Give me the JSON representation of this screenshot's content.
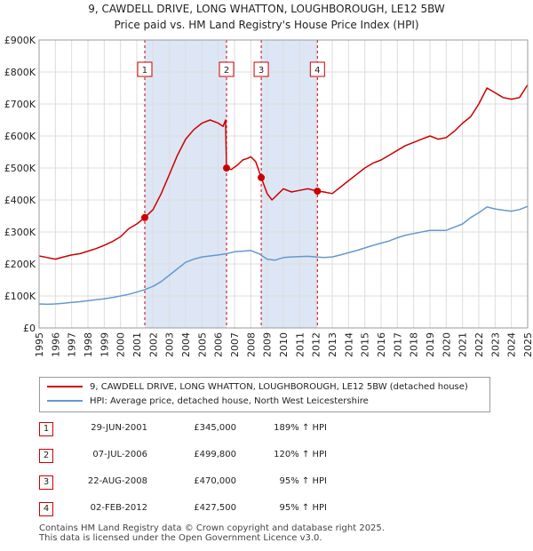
{
  "title_line1": "9, CAWDELL DRIVE, LONG WHATTON, LOUGHBOROUGH, LE12 5BW",
  "title_line2": "Price paid vs. HM Land Registry's House Price Index (HPI)",
  "colors": {
    "property": "#cc0000",
    "hpi": "#6699cc",
    "shade": "#dde6f5",
    "grid": "#dddddd"
  },
  "chart_data": {
    "type": "line",
    "xlim": [
      1995,
      2025
    ],
    "ylim": [
      0,
      900000
    ],
    "y_ticks": [
      {
        "value": 0,
        "label": "£0"
      },
      {
        "value": 100000,
        "label": "£100K"
      },
      {
        "value": 200000,
        "label": "£200K"
      },
      {
        "value": 300000,
        "label": "£300K"
      },
      {
        "value": 400000,
        "label": "£400K"
      },
      {
        "value": 500000,
        "label": "£500K"
      },
      {
        "value": 600000,
        "label": "£600K"
      },
      {
        "value": 700000,
        "label": "£700K"
      },
      {
        "value": 800000,
        "label": "£800K"
      },
      {
        "value": 900000,
        "label": "£900K"
      }
    ],
    "x_ticks": [
      "1995",
      "1996",
      "1997",
      "1998",
      "1999",
      "2000",
      "2001",
      "2002",
      "2003",
      "2004",
      "2005",
      "2006",
      "2007",
      "2008",
      "2009",
      "2010",
      "2011",
      "2012",
      "2013",
      "2014",
      "2015",
      "2016",
      "2017",
      "2018",
      "2019",
      "2020",
      "2021",
      "2022",
      "2023",
      "2024",
      "2025"
    ],
    "series": [
      {
        "name": "9, CAWDELL DRIVE, LONG WHATTON, LOUGHBOROUGH, LE12 5BW (detached house)",
        "color": "#cc0000",
        "x": [
          1995.0,
          1995.5,
          1996.0,
          1996.5,
          1997.0,
          1997.5,
          1998.0,
          1998.5,
          1999.0,
          1999.5,
          2000.0,
          2000.5,
          2001.0,
          2001.49,
          2002.0,
          2002.5,
          2003.0,
          2003.5,
          2004.0,
          2004.5,
          2005.0,
          2005.5,
          2006.0,
          2006.3,
          2006.45,
          2006.51,
          2006.8,
          2007.2,
          2007.5,
          2007.8,
          2008.0,
          2008.3,
          2008.64,
          2009.0,
          2009.3,
          2009.7,
          2010.0,
          2010.5,
          2011.0,
          2011.5,
          2012.09,
          2012.5,
          2013.0,
          2013.5,
          2014.0,
          2014.5,
          2015.0,
          2015.5,
          2016.0,
          2016.5,
          2017.0,
          2017.5,
          2018.0,
          2018.5,
          2019.0,
          2019.5,
          2020.0,
          2020.5,
          2021.0,
          2021.5,
          2022.0,
          2022.5,
          2023.0,
          2023.5,
          2024.0,
          2024.5,
          2025.0
        ],
        "values": [
          225000,
          220000,
          215000,
          222000,
          228000,
          232000,
          240000,
          248000,
          258000,
          270000,
          285000,
          310000,
          325000,
          345000,
          370000,
          420000,
          480000,
          540000,
          590000,
          620000,
          640000,
          650000,
          640000,
          630000,
          650000,
          499800,
          495000,
          510000,
          525000,
          530000,
          535000,
          520000,
          470000,
          420000,
          400000,
          420000,
          435000,
          425000,
          430000,
          435000,
          427500,
          425000,
          420000,
          440000,
          460000,
          480000,
          500000,
          515000,
          525000,
          540000,
          555000,
          570000,
          580000,
          590000,
          600000,
          590000,
          595000,
          615000,
          640000,
          660000,
          700000,
          750000,
          735000,
          720000,
          715000,
          720000,
          760000
        ]
      },
      {
        "name": "HPI: Average price, detached house, North West Leicestershire",
        "color": "#6699cc",
        "x": [
          1995.0,
          1995.5,
          1996.0,
          1996.5,
          1997.0,
          1997.5,
          1998.0,
          1998.5,
          1999.0,
          1999.5,
          2000.0,
          2000.5,
          2001.0,
          2001.5,
          2002.0,
          2002.5,
          2003.0,
          2003.5,
          2004.0,
          2004.5,
          2005.0,
          2005.5,
          2006.0,
          2006.5,
          2007.0,
          2007.5,
          2008.0,
          2008.5,
          2009.0,
          2009.5,
          2010.0,
          2010.5,
          2011.0,
          2011.5,
          2012.0,
          2012.5,
          2013.0,
          2013.5,
          2014.0,
          2014.5,
          2015.0,
          2015.5,
          2016.0,
          2016.5,
          2017.0,
          2017.5,
          2018.0,
          2018.5,
          2019.0,
          2019.5,
          2020.0,
          2020.5,
          2021.0,
          2021.5,
          2022.0,
          2022.5,
          2023.0,
          2023.5,
          2024.0,
          2024.5,
          2025.0
        ],
        "values": [
          75000,
          74000,
          75000,
          77000,
          80000,
          82000,
          85000,
          88000,
          91000,
          95000,
          100000,
          105000,
          112000,
          120000,
          130000,
          145000,
          165000,
          185000,
          205000,
          215000,
          222000,
          225000,
          228000,
          232000,
          238000,
          240000,
          242000,
          232000,
          215000,
          212000,
          220000,
          222000,
          223000,
          224000,
          222000,
          220000,
          222000,
          228000,
          235000,
          242000,
          250000,
          258000,
          265000,
          272000,
          282000,
          290000,
          295000,
          300000,
          305000,
          305000,
          305000,
          315000,
          325000,
          345000,
          360000,
          378000,
          372000,
          368000,
          365000,
          370000,
          380000
        ]
      }
    ],
    "markers": [
      {
        "id": "1",
        "x": 2001.49,
        "y": 345000
      },
      {
        "id": "2",
        "x": 2006.51,
        "y": 499800
      },
      {
        "id": "3",
        "x": 2008.64,
        "y": 470000
      },
      {
        "id": "4",
        "x": 2012.09,
        "y": 427500
      }
    ],
    "shaded_ranges": [
      [
        2001.49,
        2006.51
      ],
      [
        2008.64,
        2012.09
      ]
    ]
  },
  "legend": {
    "property": "9, CAWDELL DRIVE, LONG WHATTON, LOUGHBOROUGH, LE12 5BW (detached house)",
    "hpi": "HPI: Average price, detached house, North West Leicestershire"
  },
  "sales": [
    {
      "num": "1",
      "date": "29-JUN-2001",
      "price": "£345,000",
      "hpi": "189% ↑ HPI"
    },
    {
      "num": "2",
      "date": "07-JUL-2006",
      "price": "£499,800",
      "hpi": "120% ↑ HPI"
    },
    {
      "num": "3",
      "date": "22-AUG-2008",
      "price": "£470,000",
      "hpi": "95% ↑ HPI"
    },
    {
      "num": "4",
      "date": "02-FEB-2012",
      "price": "£427,500",
      "hpi": "95% ↑ HPI"
    }
  ],
  "footer_line1": "Contains HM Land Registry data © Crown copyright and database right 2025.",
  "footer_line2": "This data is licensed under the Open Government Licence v3.0."
}
